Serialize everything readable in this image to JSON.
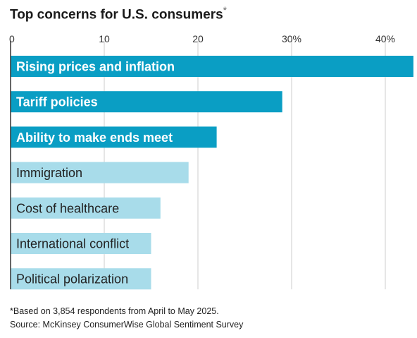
{
  "chart_data": {
    "type": "bar",
    "orientation": "horizontal",
    "title": "Top concerns for U.S. consumers",
    "title_marker": "*",
    "x_ticks": [
      "0",
      "10",
      "20",
      "30%",
      "40%"
    ],
    "xlim": [
      0,
      43
    ],
    "grid": true,
    "categories": [
      "Rising prices and inflation",
      "Tariff policies",
      "Ability to make ends meet",
      "Immigration",
      "Cost of healthcare",
      "International conflict",
      "Political polarization"
    ],
    "values": [
      43,
      29,
      22,
      19,
      16,
      15,
      15
    ],
    "highlight": [
      true,
      true,
      true,
      false,
      false,
      false,
      false
    ]
  },
  "colors": {
    "highlight": "#0a9ec4",
    "normal": "#a8dcea",
    "highlight_text": "#ffffff",
    "normal_text": "#222222",
    "grid": "#cccccc",
    "axis": "#333333"
  },
  "footnote": "*Based on 3,854 respondents from April to May 2025.",
  "source": "Source: McKinsey ConsumerWise Global Sentiment Survey"
}
